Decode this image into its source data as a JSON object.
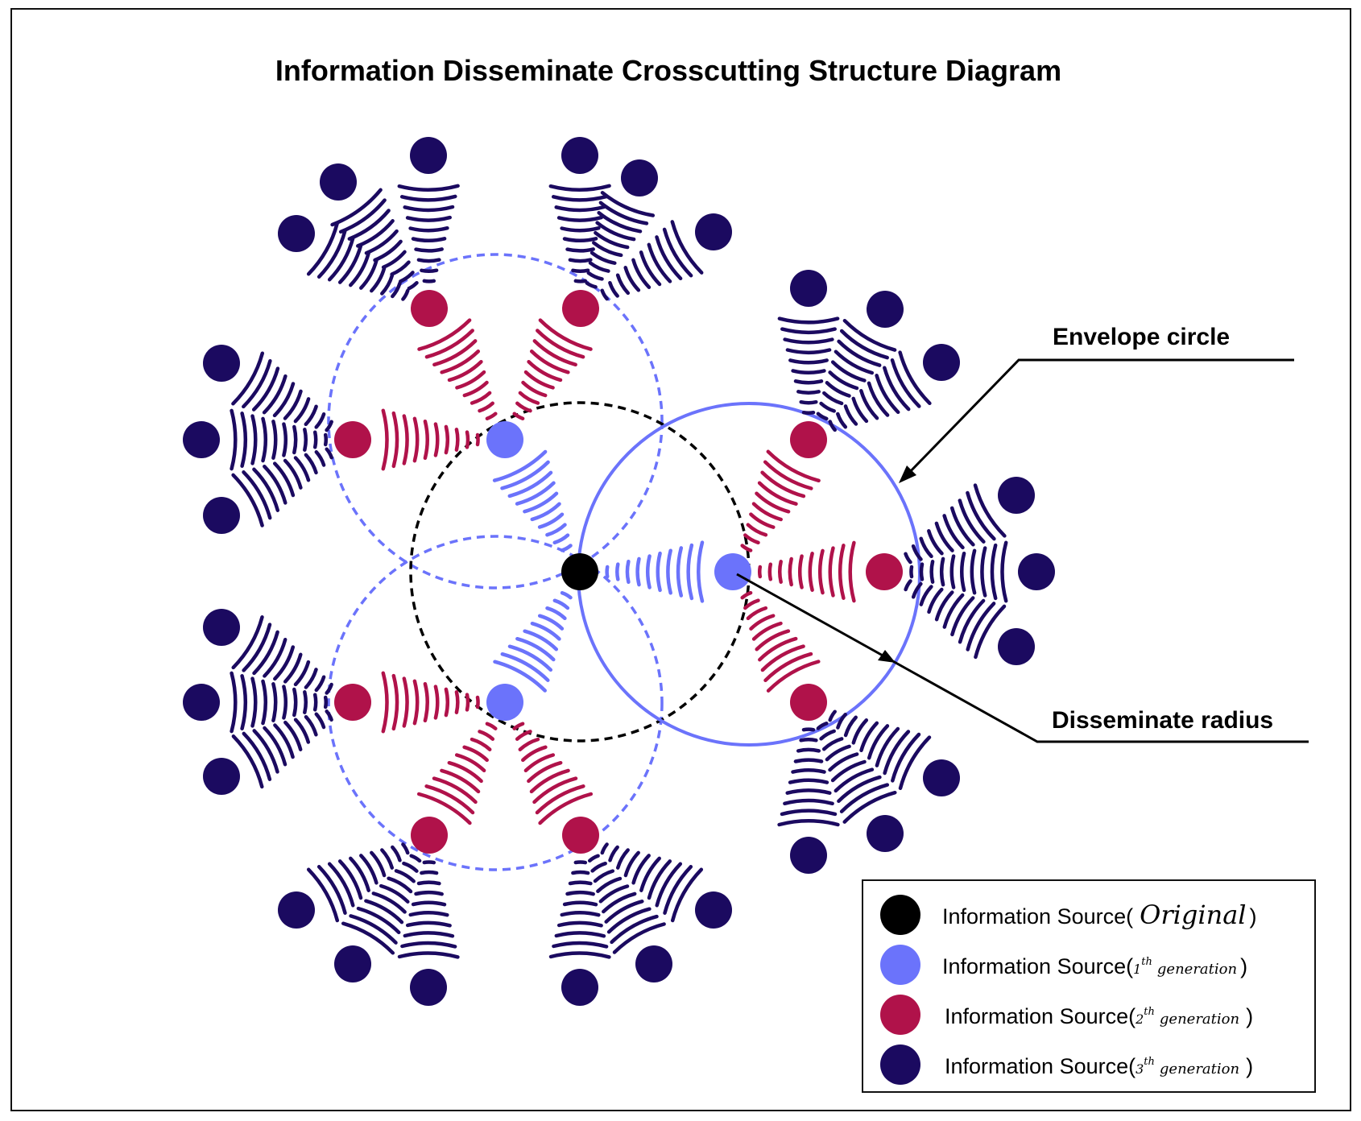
{
  "title": "Information Disseminate Crosscutting Structure Diagram",
  "callouts": {
    "envelope_circle": "Envelope circle",
    "disseminate_radius": "Disseminate radius"
  },
  "colors": {
    "original": "#000000",
    "gen1": "#6b73fb",
    "gen2": "#b0124a",
    "gen3": "#1b0a60",
    "envelope": "#6b73fb",
    "outline": "#111111"
  },
  "legend": {
    "prefix": "Information Source(",
    "original": {
      "label": "Original",
      "suffix": ")"
    },
    "gen1": {
      "sup": "th",
      "gen": "generation",
      "num": "1",
      "suffix": ")"
    },
    "gen2": {
      "sup": "th",
      "gen": "generation",
      "num": "2",
      "suffix": ")"
    },
    "gen3": {
      "sup": "th",
      "gen": "generation",
      "num": "3",
      "suffix": ")"
    }
  }
}
